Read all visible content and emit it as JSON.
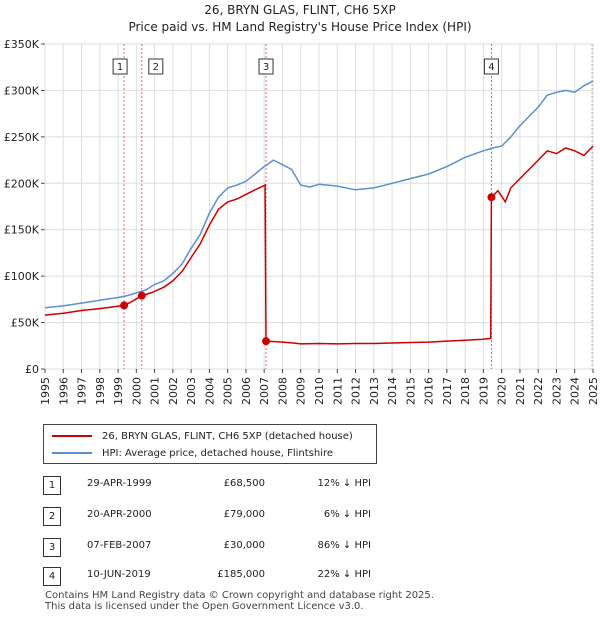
{
  "header": {
    "title": "26, BRYN GLAS, FLINT, CH6 5XP",
    "subtitle": "Price paid vs. HM Land Registry's House Price Index (HPI)"
  },
  "colors": {
    "property": "#cc0000",
    "hpi": "#5b8fd0",
    "grid": "#dddddd",
    "marker": "#e06666"
  },
  "chart_data": {
    "type": "line",
    "title": "26, BRYN GLAS, FLINT, CH6 5XP",
    "xlabel": "",
    "ylabel": "",
    "xlim": [
      1995,
      2025
    ],
    "ylim": [
      0,
      350000
    ],
    "x_ticks": [
      "1995",
      "1996",
      "1997",
      "1998",
      "1999",
      "2000",
      "2001",
      "2002",
      "2003",
      "2004",
      "2005",
      "2006",
      "2007",
      "2008",
      "2009",
      "2010",
      "2011",
      "2012",
      "2013",
      "2014",
      "2015",
      "2016",
      "2017",
      "2018",
      "2019",
      "2020",
      "2021",
      "2022",
      "2023",
      "2024",
      "2025"
    ],
    "y_ticks": [
      {
        "value": 0,
        "label": "£0"
      },
      {
        "value": 50000,
        "label": "£50K"
      },
      {
        "value": 100000,
        "label": "£100K"
      },
      {
        "value": 150000,
        "label": "£150K"
      },
      {
        "value": 200000,
        "label": "£200K"
      },
      {
        "value": 250000,
        "label": "£250K"
      },
      {
        "value": 300000,
        "label": "£300K"
      },
      {
        "value": 350000,
        "label": "£350K"
      }
    ],
    "series": [
      {
        "name": "26, BRYN GLAS, FLINT, CH6 5XP (detached house)",
        "points": [
          [
            1995.0,
            58000
          ],
          [
            1996.0,
            60000
          ],
          [
            1997.0,
            63000
          ],
          [
            1998.0,
            65000
          ],
          [
            1998.8,
            67000
          ],
          [
            1999.33,
            68500
          ],
          [
            1999.7,
            72000
          ],
          [
            2000.3,
            79000
          ],
          [
            2000.8,
            82000
          ],
          [
            2001.5,
            88000
          ],
          [
            2002.0,
            95000
          ],
          [
            2002.5,
            105000
          ],
          [
            2003.0,
            120000
          ],
          [
            2003.5,
            135000
          ],
          [
            2004.0,
            155000
          ],
          [
            2004.5,
            172000
          ],
          [
            2005.0,
            180000
          ],
          [
            2005.5,
            183000
          ],
          [
            2006.0,
            188000
          ],
          [
            2006.5,
            193000
          ],
          [
            2007.05,
            198000
          ],
          [
            2007.1,
            30000
          ],
          [
            2008.0,
            29000
          ],
          [
            2008.6,
            28000
          ],
          [
            2009.0,
            27000
          ],
          [
            2010.0,
            27500
          ],
          [
            2011.0,
            27000
          ],
          [
            2012.0,
            27500
          ],
          [
            2013.0,
            27500
          ],
          [
            2014.0,
            28000
          ],
          [
            2015.0,
            28500
          ],
          [
            2016.0,
            29000
          ],
          [
            2017.0,
            30000
          ],
          [
            2018.0,
            31000
          ],
          [
            2019.0,
            32000
          ],
          [
            2019.4,
            33000
          ],
          [
            2019.44,
            185000
          ],
          [
            2019.8,
            192000
          ],
          [
            2020.2,
            180000
          ],
          [
            2020.5,
            195000
          ],
          [
            2021.0,
            205000
          ],
          [
            2021.5,
            215000
          ],
          [
            2022.0,
            225000
          ],
          [
            2022.5,
            235000
          ],
          [
            2023.0,
            232000
          ],
          [
            2023.5,
            238000
          ],
          [
            2024.0,
            235000
          ],
          [
            2024.5,
            230000
          ],
          [
            2025.0,
            240000
          ]
        ]
      },
      {
        "name": "HPI: Average price, detached house, Flintshire",
        "points": [
          [
            1995.0,
            66000
          ],
          [
            1996.0,
            68000
          ],
          [
            1997.0,
            71000
          ],
          [
            1998.0,
            74000
          ],
          [
            1999.0,
            77000
          ],
          [
            1999.5,
            79000
          ],
          [
            2000.0,
            82000
          ],
          [
            2000.5,
            85000
          ],
          [
            2001.0,
            91000
          ],
          [
            2001.5,
            95000
          ],
          [
            2002.0,
            103000
          ],
          [
            2002.5,
            113000
          ],
          [
            2003.0,
            130000
          ],
          [
            2003.5,
            145000
          ],
          [
            2004.0,
            168000
          ],
          [
            2004.5,
            185000
          ],
          [
            2005.0,
            195000
          ],
          [
            2005.5,
            198000
          ],
          [
            2006.0,
            202000
          ],
          [
            2006.5,
            210000
          ],
          [
            2007.0,
            218000
          ],
          [
            2007.5,
            225000
          ],
          [
            2008.0,
            220000
          ],
          [
            2008.5,
            215000
          ],
          [
            2009.0,
            198000
          ],
          [
            2009.5,
            196000
          ],
          [
            2010.0,
            199000
          ],
          [
            2011.0,
            197000
          ],
          [
            2012.0,
            193000
          ],
          [
            2013.0,
            195000
          ],
          [
            2014.0,
            200000
          ],
          [
            2015.0,
            205000
          ],
          [
            2016.0,
            210000
          ],
          [
            2017.0,
            218000
          ],
          [
            2018.0,
            228000
          ],
          [
            2019.0,
            235000
          ],
          [
            2019.5,
            238000
          ],
          [
            2020.0,
            240000
          ],
          [
            2020.5,
            250000
          ],
          [
            2021.0,
            262000
          ],
          [
            2021.5,
            272000
          ],
          [
            2022.0,
            282000
          ],
          [
            2022.5,
            295000
          ],
          [
            2023.0,
            298000
          ],
          [
            2023.5,
            300000
          ],
          [
            2024.0,
            298000
          ],
          [
            2024.5,
            305000
          ],
          [
            2025.0,
            310000
          ]
        ]
      }
    ],
    "sales": [
      {
        "label": "1",
        "x": 1999.33,
        "value": 68500
      },
      {
        "label": "2",
        "x": 2000.3,
        "value": 79000
      },
      {
        "label": "3",
        "x": 2007.1,
        "value": 30000
      },
      {
        "label": "4",
        "x": 2019.44,
        "value": 185000
      }
    ]
  },
  "legend": {
    "property_label": "26, BRYN GLAS, FLINT, CH6 5XP (detached house)",
    "hpi_label": "HPI: Average price, detached house, Flintshire"
  },
  "sales_table": [
    {
      "num": "1",
      "date": "29-APR-1999",
      "price": "£68,500",
      "diff": "12% ↓ HPI"
    },
    {
      "num": "2",
      "date": "20-APR-2000",
      "price": "£79,000",
      "diff": "6% ↓ HPI"
    },
    {
      "num": "3",
      "date": "07-FEB-2007",
      "price": "£30,000",
      "diff": "86% ↓ HPI"
    },
    {
      "num": "4",
      "date": "10-JUN-2019",
      "price": "£185,000",
      "diff": "22% ↓ HPI"
    }
  ],
  "footer": {
    "line1": "Contains HM Land Registry data © Crown copyright and database right 2025.",
    "line2": "This data is licensed under the Open Government Licence v3.0."
  }
}
